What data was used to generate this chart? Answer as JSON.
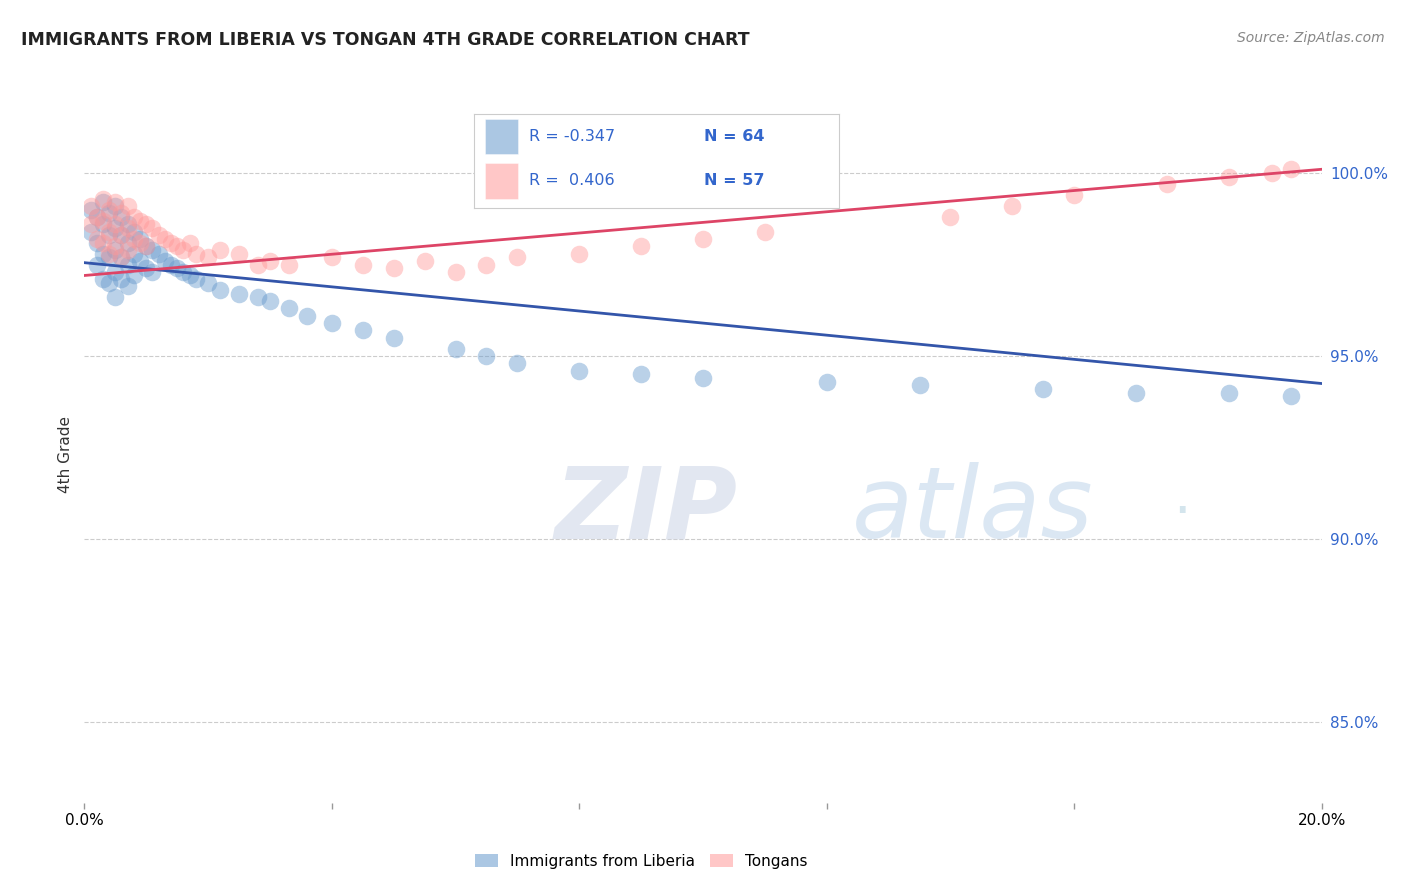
{
  "title": "IMMIGRANTS FROM LIBERIA VS TONGAN 4TH GRADE CORRELATION CHART",
  "source": "Source: ZipAtlas.com",
  "ylabel": "4th Grade",
  "ytick_labels": [
    "85.0%",
    "90.0%",
    "95.0%",
    "100.0%"
  ],
  "ytick_values": [
    0.85,
    0.9,
    0.95,
    1.0
  ],
  "xmin": 0.0,
  "xmax": 0.2,
  "ymin": 0.828,
  "ymax": 1.018,
  "legend_blue_label": "Immigrants from Liberia",
  "legend_pink_label": "Tongans",
  "r_blue": -0.347,
  "n_blue": 64,
  "r_pink": 0.406,
  "n_pink": 57,
  "blue_color": "#6699CC",
  "pink_color": "#FF9999",
  "blue_line_color": "#3355AA",
  "pink_line_color": "#DD4466",
  "watermark_zip": "ZIP",
  "watermark_atlas": "atlas",
  "blue_scatter_x": [
    0.001,
    0.001,
    0.002,
    0.002,
    0.002,
    0.003,
    0.003,
    0.003,
    0.003,
    0.004,
    0.004,
    0.004,
    0.004,
    0.005,
    0.005,
    0.005,
    0.005,
    0.005,
    0.006,
    0.006,
    0.006,
    0.006,
    0.007,
    0.007,
    0.007,
    0.007,
    0.008,
    0.008,
    0.008,
    0.009,
    0.009,
    0.01,
    0.01,
    0.011,
    0.011,
    0.012,
    0.013,
    0.014,
    0.015,
    0.016,
    0.017,
    0.018,
    0.02,
    0.022,
    0.025,
    0.028,
    0.03,
    0.033,
    0.036,
    0.04,
    0.045,
    0.05,
    0.06,
    0.065,
    0.07,
    0.08,
    0.09,
    0.1,
    0.12,
    0.135,
    0.155,
    0.17,
    0.185,
    0.195
  ],
  "blue_scatter_y": [
    0.99,
    0.984,
    0.988,
    0.981,
    0.975,
    0.992,
    0.986,
    0.978,
    0.971,
    0.989,
    0.983,
    0.977,
    0.97,
    0.991,
    0.985,
    0.979,
    0.973,
    0.966,
    0.988,
    0.983,
    0.977,
    0.971,
    0.986,
    0.981,
    0.975,
    0.969,
    0.984,
    0.978,
    0.972,
    0.982,
    0.976,
    0.98,
    0.974,
    0.979,
    0.973,
    0.978,
    0.976,
    0.975,
    0.974,
    0.973,
    0.972,
    0.971,
    0.97,
    0.968,
    0.967,
    0.966,
    0.965,
    0.963,
    0.961,
    0.959,
    0.957,
    0.955,
    0.952,
    0.95,
    0.948,
    0.946,
    0.945,
    0.944,
    0.943,
    0.942,
    0.941,
    0.94,
    0.94,
    0.939
  ],
  "pink_scatter_x": [
    0.001,
    0.001,
    0.002,
    0.002,
    0.003,
    0.003,
    0.003,
    0.004,
    0.004,
    0.004,
    0.005,
    0.005,
    0.005,
    0.006,
    0.006,
    0.006,
    0.007,
    0.007,
    0.007,
    0.008,
    0.008,
    0.009,
    0.009,
    0.01,
    0.01,
    0.011,
    0.012,
    0.013,
    0.014,
    0.015,
    0.016,
    0.017,
    0.018,
    0.02,
    0.022,
    0.025,
    0.028,
    0.03,
    0.033,
    0.04,
    0.045,
    0.05,
    0.055,
    0.06,
    0.065,
    0.07,
    0.08,
    0.09,
    0.1,
    0.11,
    0.14,
    0.15,
    0.16,
    0.175,
    0.185,
    0.192,
    0.195
  ],
  "pink_scatter_y": [
    0.991,
    0.986,
    0.988,
    0.982,
    0.993,
    0.987,
    0.981,
    0.99,
    0.984,
    0.978,
    0.992,
    0.986,
    0.98,
    0.989,
    0.983,
    0.977,
    0.991,
    0.985,
    0.979,
    0.988,
    0.982,
    0.987,
    0.981,
    0.986,
    0.98,
    0.985,
    0.983,
    0.982,
    0.981,
    0.98,
    0.979,
    0.981,
    0.978,
    0.977,
    0.979,
    0.978,
    0.975,
    0.976,
    0.975,
    0.977,
    0.975,
    0.974,
    0.976,
    0.973,
    0.975,
    0.977,
    0.978,
    0.98,
    0.982,
    0.984,
    0.988,
    0.991,
    0.994,
    0.997,
    0.999,
    1.0,
    1.001
  ],
  "blue_line_x0": 0.0,
  "blue_line_x1": 0.2,
  "blue_line_y0": 0.9755,
  "blue_line_y1": 0.9425,
  "pink_line_x0": 0.0,
  "pink_line_x1": 0.2,
  "pink_line_y0": 0.972,
  "pink_line_y1": 1.001
}
